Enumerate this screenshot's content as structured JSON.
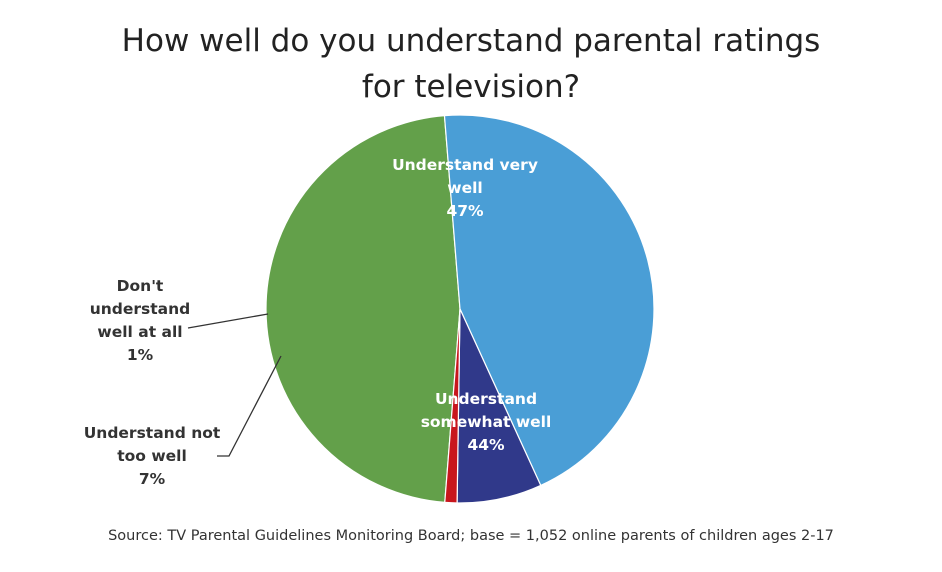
{
  "chart_data": {
    "type": "pie",
    "title_lines": [
      "How well do you understand parental ratings",
      "for television?"
    ],
    "slices": [
      {
        "label_lines": [
          "Understand very",
          "well",
          "47%"
        ],
        "value": 47,
        "color": "#63A04A",
        "label_color": "#ffffff"
      },
      {
        "label_lines": [
          "Understand",
          "somewhat well",
          "44%"
        ],
        "value": 44,
        "color": "#4A9ED6",
        "label_color": "#ffffff"
      },
      {
        "label_lines": [
          "Understand not",
          "too well",
          "7%"
        ],
        "value": 7,
        "color": "#30398A",
        "label_color": "#333333"
      },
      {
        "label_lines": [
          "Don't",
          "understand",
          "well at all",
          "1%"
        ],
        "value": 1,
        "color": "#C8161D",
        "label_color": "#333333"
      }
    ]
  },
  "source": "Source: TV Parental Guidelines Monitoring Board; base = 1,052 online parents of children ages 2-17"
}
